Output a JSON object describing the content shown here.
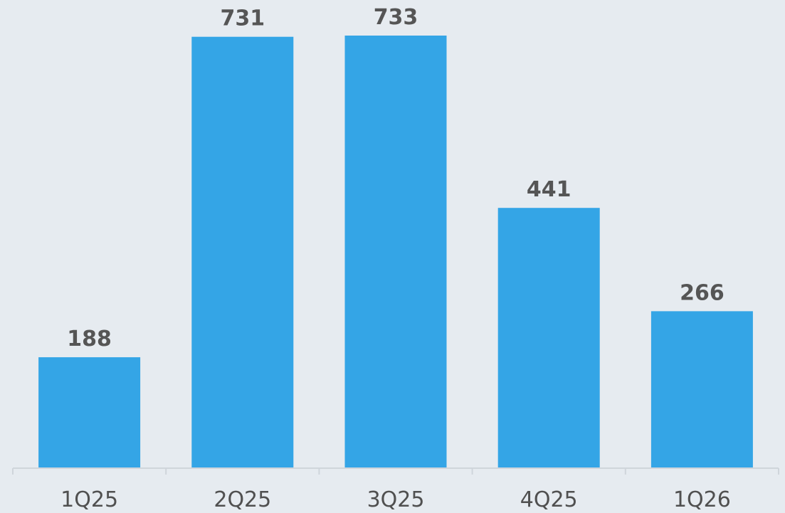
{
  "chart_data": {
    "type": "bar",
    "categories": [
      "1Q25",
      "2Q25",
      "3Q25",
      "4Q25",
      "1Q26"
    ],
    "values": [
      188,
      731,
      733,
      441,
      266
    ],
    "data_labels": [
      "188",
      "731",
      "733",
      "441",
      "266"
    ],
    "title": "",
    "xlabel": "",
    "ylabel": "",
    "ylim": [
      0,
      733
    ],
    "grid": false,
    "legend": "none",
    "colors": {
      "bar": "#34a5e6",
      "label": "#555555",
      "background": "#e6ebf0"
    }
  }
}
